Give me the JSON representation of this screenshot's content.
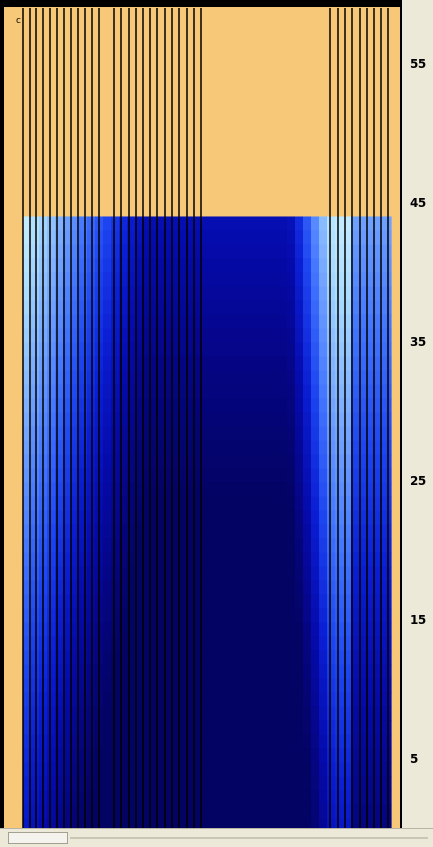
{
  "chart_data": {
    "type": "heatmap",
    "title": "",
    "xlabel": "",
    "ylabel": "",
    "ylim": [
      0,
      59
    ],
    "y_ticks": [
      "5",
      "15",
      "25",
      "35",
      "45",
      "55"
    ],
    "y_tick_values": [
      5,
      15,
      25,
      35,
      45,
      55
    ],
    "corner_text": "c",
    "colors": {
      "empty": "#f6c878",
      "frame": "#000000",
      "separator": "#000000"
    },
    "columns": 23,
    "filled_top_value": 44,
    "cells_note": "Blue gradient region from 0 to 44, deepest in center columns"
  }
}
